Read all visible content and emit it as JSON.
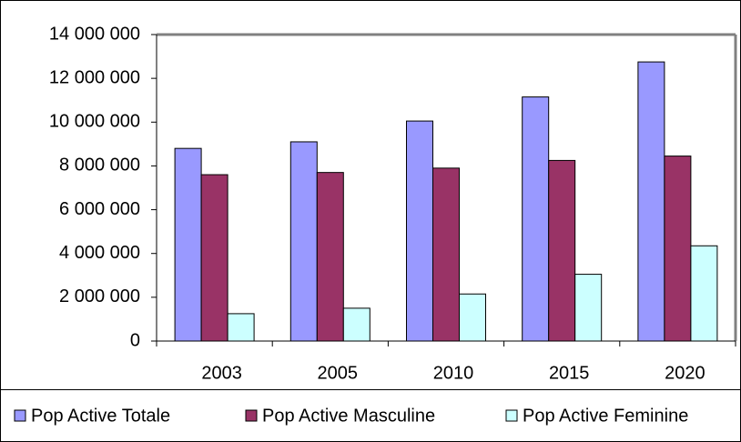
{
  "chart_data": {
    "type": "bar",
    "categories": [
      "2003",
      "2005",
      "2010",
      "2015",
      "2020"
    ],
    "series": [
      {
        "name": "Pop Active Totale",
        "color": "#9999ff",
        "values": [
          8800000,
          9100000,
          10050000,
          11150000,
          12750000
        ]
      },
      {
        "name": "Pop Active Masculine",
        "color": "#993366",
        "values": [
          7600000,
          7700000,
          7900000,
          8250000,
          8450000
        ]
      },
      {
        "name": "Pop Active Feminine",
        "color": "#ccffff",
        "values": [
          1250000,
          1500000,
          2150000,
          3050000,
          4350000
        ]
      }
    ],
    "ylim": [
      0,
      14000000
    ],
    "yticks": [
      0,
      {
        "value": 2000000,
        "label": "2 000 000"
      },
      {
        "value": 4000000,
        "label": "4 000 000"
      },
      {
        "value": 6000000,
        "label": "6 000 000"
      },
      {
        "value": 8000000,
        "label": "8 000 000"
      },
      {
        "value": 10000000,
        "label": "10 000 000"
      },
      {
        "value": 12000000,
        "label": "12 000 000"
      },
      {
        "value": 14000000,
        "label": "14 000 000"
      }
    ],
    "grid": false,
    "legend": "bottom"
  }
}
